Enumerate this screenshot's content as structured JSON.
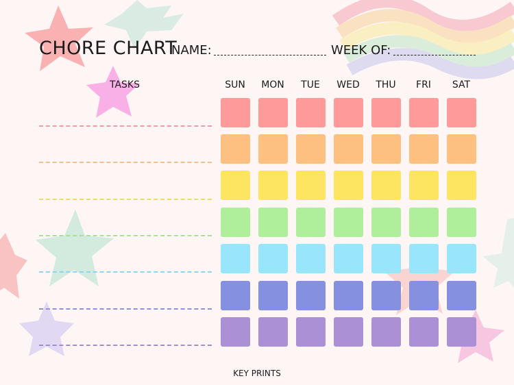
{
  "header": {
    "title": "CHORE CHART",
    "name_label": "NAME:",
    "week_label": "WEEK OF:"
  },
  "tasks_label": "TASKS",
  "days": [
    "SUN",
    "MON",
    "TUE",
    "WED",
    "THU",
    "FRI",
    "SAT"
  ],
  "row_colors": [
    "#fe9a99",
    "#fec080",
    "#fde461",
    "#afef9c",
    "#99e5fb",
    "#8591e0",
    "#ac90d6"
  ],
  "line_colors": [
    "#f29aa6",
    "#f3be8c",
    "#f0d96b",
    "#a8e29a",
    "#8fd4ef",
    "#8a92d9",
    "#a38bd0"
  ],
  "footer": "KEY PRINTS"
}
